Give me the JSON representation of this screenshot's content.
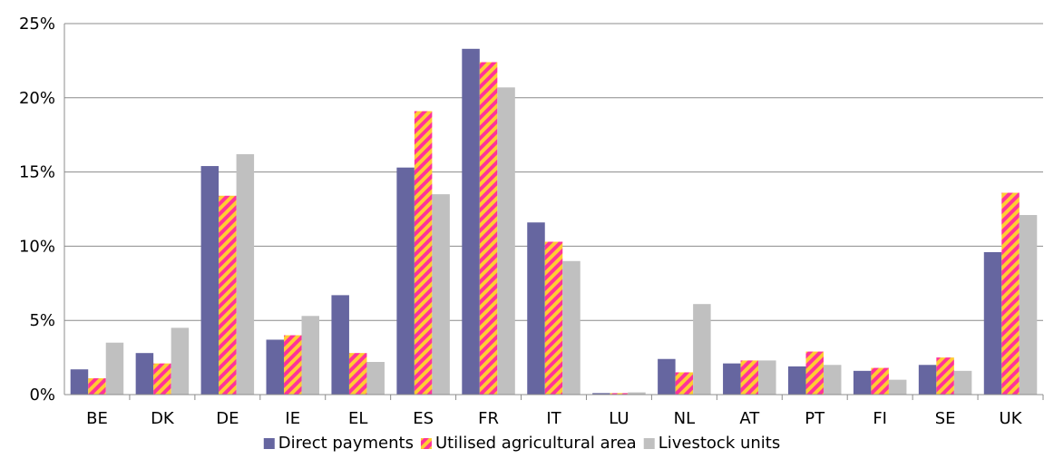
{
  "chart_data": {
    "type": "bar",
    "categories": [
      "BE",
      "DK",
      "DE",
      "IE",
      "EL",
      "ES",
      "FR",
      "IT",
      "LU",
      "NL",
      "AT",
      "PT",
      "FI",
      "SE",
      "UK"
    ],
    "series": [
      {
        "name": "Direct payments",
        "color": "#6666a0",
        "pattern": "solid",
        "values": [
          1.7,
          2.8,
          15.4,
          3.7,
          6.7,
          15.3,
          23.3,
          11.6,
          0.1,
          2.4,
          2.1,
          1.9,
          1.6,
          2.0,
          9.6
        ]
      },
      {
        "name": "Utilised agricultural area",
        "color": "#ff3399",
        "color2": "#ffcc33",
        "pattern": "diagonal-stripes",
        "values": [
          1.1,
          2.1,
          13.4,
          4.0,
          2.8,
          19.1,
          22.4,
          10.3,
          0.1,
          1.5,
          2.3,
          2.9,
          1.8,
          2.5,
          13.6
        ]
      },
      {
        "name": "Livestock units",
        "color": "#c0c0c0",
        "pattern": "solid",
        "values": [
          3.5,
          4.5,
          16.2,
          5.3,
          2.2,
          13.5,
          20.7,
          9.0,
          0.15,
          6.1,
          2.3,
          2.0,
          1.0,
          1.6,
          12.1
        ]
      }
    ],
    "yticks": [
      "0%",
      "5%",
      "10%",
      "15%",
      "20%",
      "25%"
    ],
    "ylim": [
      0,
      25
    ],
    "grid": true,
    "legend_position": "bottom"
  }
}
